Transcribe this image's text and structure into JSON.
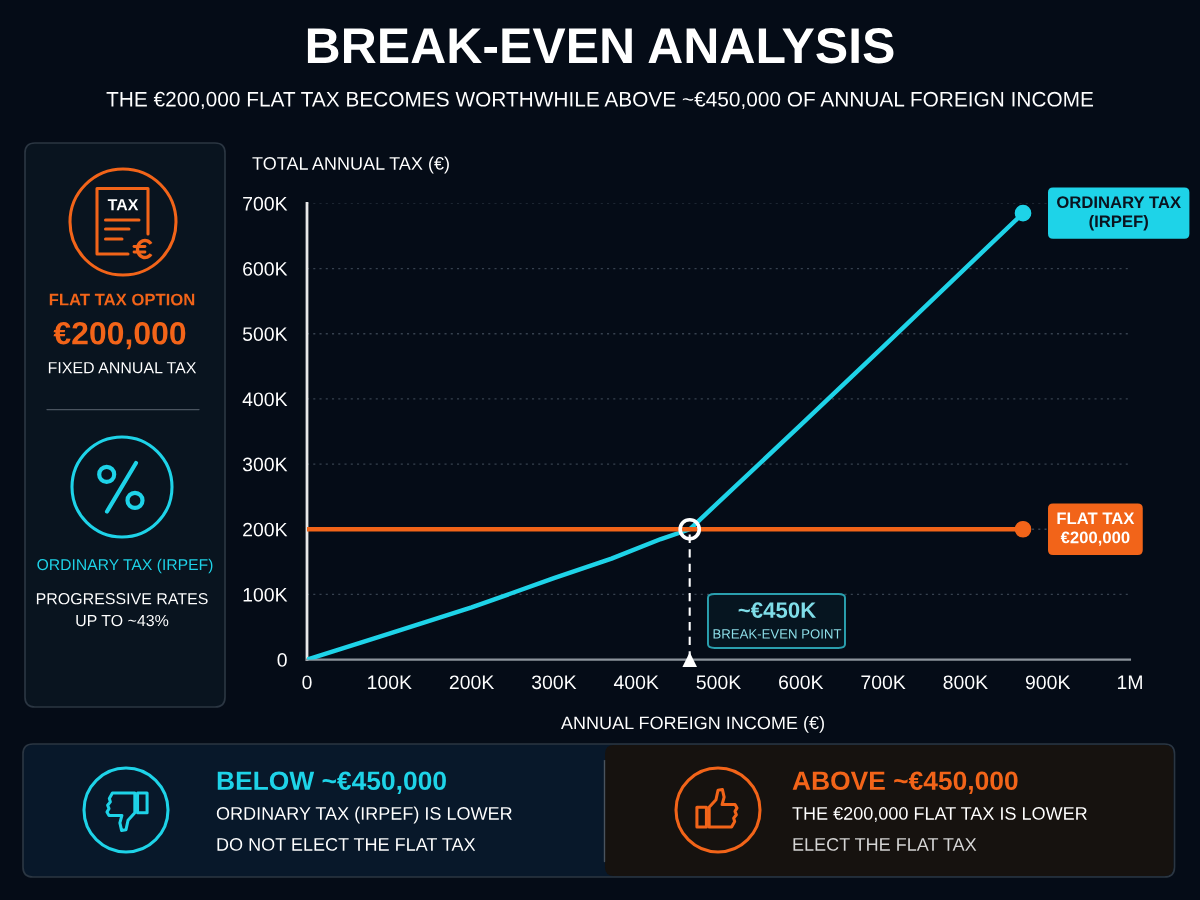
{
  "chart_data": [
    {
      "type": "line",
      "title": "BREAK-EVEN ANALYSIS",
      "subtitle": "THE €200,000 FLAT TAX BECOMES WORTHWHILE ABOVE ~€450,000 OF ANNUAL FOREIGN INCOME",
      "xlabel": "ANNUAL FOREIGN INCOME (€)",
      "ylabel": "TOTAL ANNUAL TAX (€)",
      "xlim": [
        0,
        1000000
      ],
      "xticks": [
        0,
        {
          "value": 100000,
          "label": "100K"
        },
        {
          "value": 200000,
          "label": "200K"
        },
        {
          "value": 300000,
          "label": "300K"
        },
        {
          "value": 400000,
          "label": "400K"
        },
        {
          "value": 500000,
          "label": "500K"
        },
        {
          "value": 600000,
          "label": "600K"
        },
        {
          "value": 700000,
          "label": "700K"
        },
        {
          "value": 800000,
          "label": "800K"
        },
        {
          "value": 900000,
          "label": "900K"
        },
        {
          "value": 1000000,
          "label": "1M"
        }
      ],
      "ylim": [
        0,
        700000
      ],
      "yticks": [
        0,
        {
          "value": 100000,
          "label": "100K"
        },
        {
          "value": 200000,
          "label": "200K"
        },
        {
          "value": 300000,
          "label": "300K"
        },
        {
          "value": 400000,
          "label": "400K"
        },
        {
          "value": 500000,
          "label": "500K"
        },
        {
          "value": 600000,
          "label": "600K"
        },
        {
          "value": 700000,
          "label": "700K"
        }
      ],
      "grid": "y",
      "series": [
        {
          "name": "ORDINARY TAX\n(IRPEF)",
          "color": "#1ed3e8",
          "x": [
            0,
            100000,
            200000,
            300000,
            370000,
            430000,
            465000,
            600000,
            700000,
            870000
          ],
          "values": [
            0,
            40000,
            80000,
            125000,
            155000,
            185000,
            200000,
            360000,
            480000,
            685000
          ]
        },
        {
          "name": "FLAT TAX\n€200,000",
          "color": "#f26419",
          "x": [
            0,
            870000
          ],
          "values": [
            200000,
            200000
          ]
        },
        {
          "type": "line",
          "color": "#ffffff",
          "line_style": "dashed",
          "x": [
            465000,
            465000
          ],
          "values": [
            0,
            200000
          ]
        },
        {
          "type": "scatter",
          "color": "#ffffff",
          "marker": "circle",
          "x": [
            465000
          ],
          "values": [
            200000
          ]
        },
        {
          "type": "scatter",
          "color": "#ffffff",
          "marker": "triangle",
          "x": [
            465000
          ],
          "values": [
            0
          ]
        }
      ],
      "annotations": [
        "~€450K",
        "BREAK-EVEN POINT"
      ]
    },
    {
      "type": "other",
      "annotations": [
        "TAX",
        "FLAT TAX OPTION",
        "€200,000",
        "FIXED ANNUAL TAX",
        "ORDINARY TAX (IRPEF)",
        "PROGRESSIVE RATES\nUP TO ~43%"
      ]
    },
    {
      "type": "other",
      "annotations": [
        "BELOW ~€450,000",
        "ORDINARY TAX (IRPEF) IS LOWER",
        "DO NOT ELECT THE FLAT TAX",
        "ABOVE ~€450,000",
        "THE €200,000 FLAT TAX IS LOWER",
        "ELECT THE FLAT TAX"
      ]
    }
  ]
}
